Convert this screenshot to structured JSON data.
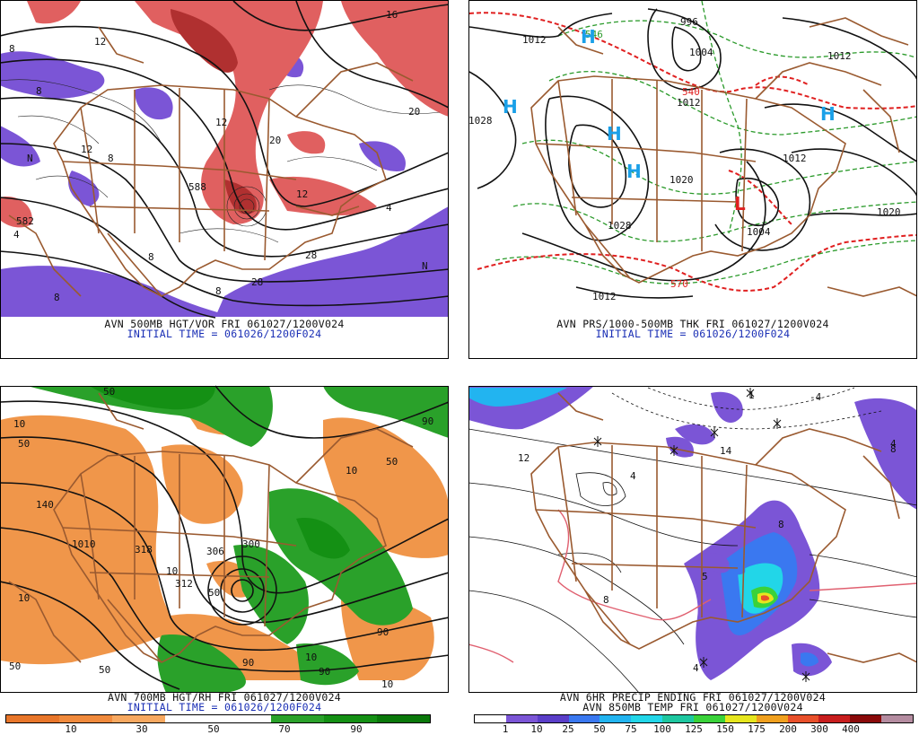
{
  "panels": {
    "p500": {
      "caption": "AVN 500MB HGT/VOR FRI 061027/1200V024",
      "subcaption": "INITIAL TIME = 061026/1200F024",
      "labels": [
        "8",
        "12",
        "16",
        "20",
        "8",
        "12",
        "N",
        "12",
        "8",
        "4",
        "8",
        "582",
        "8",
        "N",
        "12",
        "28",
        "588",
        "4",
        "28",
        "8",
        "20"
      ]
    },
    "pres": {
      "caption": "AVN PRS/1000-500MB THK FRI 061027/1200V024",
      "subcaption": "INITIAL TIME = 061026/1200F024",
      "isobars": [
        "1012",
        "996",
        "1004",
        "1012",
        "1028",
        "1020",
        "1012",
        "1028",
        "1004",
        "1012",
        "1020",
        "1012"
      ],
      "thickness": [
        "540",
        "570",
        "546"
      ],
      "high": "H",
      "low": "L"
    },
    "p700": {
      "caption": "AVN 700MB HGT/RH FRI 061027/1200V024",
      "subcaption": "INITIAL TIME = 061026/1200F024",
      "labels": [
        "50",
        "10",
        "50",
        "90",
        "50",
        "10",
        "140",
        "1010",
        "318",
        "10",
        "312",
        "306",
        "300",
        "50",
        "10",
        "90",
        "50",
        "10",
        "90",
        "50",
        "90",
        "10"
      ],
      "legend_colors": [
        "#e8762a",
        "#f08a3c",
        "#f7a860",
        "#ffffff",
        "#ffffff",
        "#2aa12a",
        "#149014",
        "#0a780a"
      ],
      "legend_ticks": [
        "10",
        "30",
        "50",
        "70",
        "90"
      ]
    },
    "precip": {
      "caption": "AVN 6HR PRECIP ENDING FRI 061027/1200V024",
      "subcaption": "AVN 850MB TEMP FRI 061027/1200V024",
      "labels": [
        "-4",
        "1",
        "8",
        "4",
        "14",
        "8",
        "5",
        "4",
        "12",
        "8",
        "4"
      ],
      "legend_colors": [
        "#ffffff",
        "#7b55d6",
        "#5a3ec8",
        "#3a78f0",
        "#22b4f0",
        "#22d6e8",
        "#1ec7a0",
        "#3ad23a",
        "#e6e61e",
        "#f0a01e",
        "#e8502a",
        "#c81e1e",
        "#8a0a0a",
        "#b48ca0"
      ],
      "legend_ticks": [
        "1",
        "10",
        "25",
        "50",
        "75",
        "100",
        "125",
        "150",
        "175",
        "200",
        "300",
        "400"
      ]
    }
  },
  "colors": {
    "map_lines": "#9a5a30",
    "vort_red": "#d84040",
    "vort_purple": "#7a55d8",
    "high_blue": "#1aa0e8",
    "low_red": "#e02020",
    "thk_green": "#2a9a2a",
    "thk_red": "#e02020",
    "rh_orange": "#f0964a",
    "rh_green": "#2aa12a"
  }
}
